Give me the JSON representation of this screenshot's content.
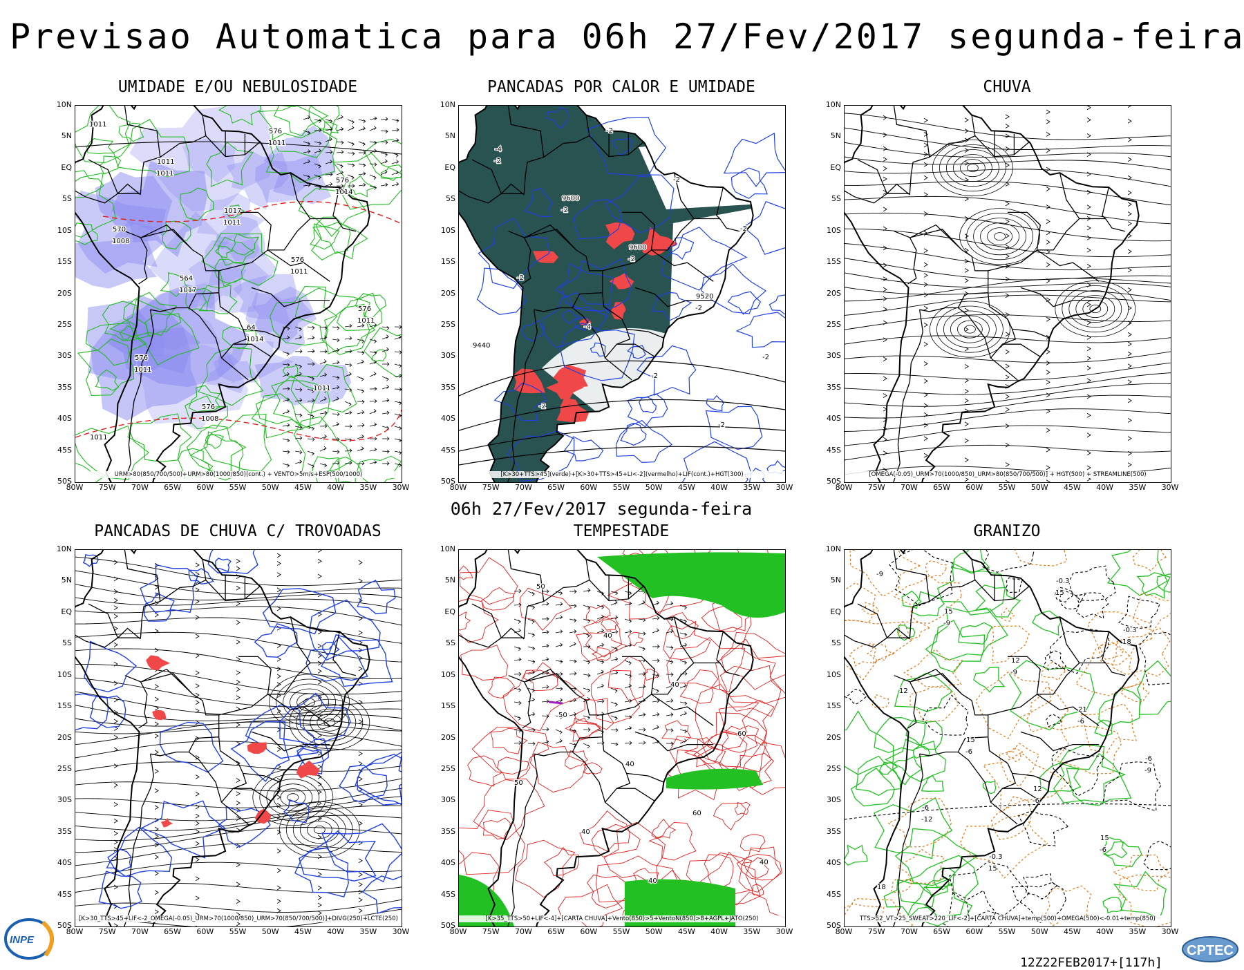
{
  "header": {
    "title": "Previsao Automatica  para 06h 27/Fev/2017 segunda-feira",
    "middle_title": "06h 27/Fev/2017 segunda-feira",
    "run": "12Z22FEB2017+[117h]"
  },
  "axes": {
    "lat": [
      "10N",
      "5N",
      "EQ",
      "5S",
      "10S",
      "15S",
      "20S",
      "25S",
      "30S",
      "35S",
      "40S",
      "45S",
      "50S"
    ],
    "lon": [
      "80W",
      "75W",
      "70W",
      "65W",
      "60W",
      "55W",
      "50W",
      "45W",
      "40W",
      "35W",
      "30W"
    ]
  },
  "panels": [
    {
      "id": "umidade",
      "title": "UMIDADE E/OU NEBULOSIDADE",
      "caption": "URM>80(850/700/500)+URM>80(1000/850)(cont.) + VENTO>5m/s+ESP(500/1000)",
      "labels": [
        "1011",
        "1011",
        "1011",
        "1011",
        "1011",
        "1011",
        "1008",
        "1011",
        "1014",
        "1008",
        "1017",
        "1014",
        "1011",
        "1011",
        "1011",
        "1017",
        "576",
        "576",
        "576",
        "576",
        "576",
        "576",
        "570",
        "564",
        "64"
      ],
      "colors": {
        "humidity": "#8c8cf0",
        "contour": "#22bb22",
        "thickness": "#e02020",
        "pressure": "#000000"
      }
    },
    {
      "id": "pancadas-calor",
      "title": "PANCADAS POR CALOR E UMIDADE",
      "caption": "[K>30+TTS>45](verde)+[K>30+TTS>45+LI<-2](vermelho)+LIF(cont.)+HGT(300)",
      "labels": [
        "-2",
        "-2",
        "-2",
        "-2",
        "-2",
        "-2",
        "-2",
        "-2",
        "-2",
        "-2",
        "-4",
        "-2",
        "-2",
        "-4",
        "9600",
        "9600",
        "9520",
        "9440"
      ],
      "colors": {
        "green": "#1e4a48",
        "red": "#f04848",
        "lif": "#2040e0",
        "hgt": "#000000"
      }
    },
    {
      "id": "chuva",
      "title": "CHUVA",
      "caption": "[OMEGA(-0.05)_URM>70(1000/850)_URM>80(850/700/500)] + HGT(500) + STREAMLINE(500)",
      "labels": [],
      "colors": {
        "streamline": "#000000"
      }
    },
    {
      "id": "trovoadas",
      "title": "PANCADAS DE CHUVA C/ TROVOADAS",
      "caption": "[K>30_TTS>45+LIF<-2_OMEGA(-0.05)_URM>70(1000/850)_URM>70(850/700/500)]+DIVG(250)+LCTE(250)",
      "labels": [],
      "colors": {
        "streamline": "#000000",
        "divg": "#2040e0",
        "storm": "#f04848"
      }
    },
    {
      "id": "tempestade",
      "title": "TEMPESTADE",
      "caption": "[K>35_TTS>50+LIF<-4]+[CARTA CHUVA]+Vento(850)>5+VentoN(850)>8+AGPL+JATO(250)",
      "labels": [
        "50",
        "40",
        "60",
        "40",
        "50",
        "40",
        "40",
        "60",
        "50",
        "40",
        "40"
      ],
      "colors": {
        "jet": "#e02020",
        "green": "#22c022",
        "purple": "#a020c0"
      }
    },
    {
      "id": "granizo",
      "title": "GRANIZO",
      "caption": "TTS>52_VT>25_SWEAT>220_LIF<-2]+[CARTA CHUVA]+temp(500)+OMEGA(500)<-0.01+temp(850)",
      "labels": [
        "-6",
        "-6",
        "-6",
        "-9",
        "-9",
        "-9",
        "-6",
        "-9",
        "-12",
        "15",
        "15",
        "18",
        "12",
        "15",
        "12",
        "15",
        "18",
        "15",
        "12",
        "21",
        "-6",
        "-6",
        "-0.3",
        "-0.3",
        "-0.3"
      ],
      "colors": {
        "temp500": "#000000",
        "temp850": "#22c022",
        "omega": "#e07818"
      }
    }
  ],
  "logos": {
    "left": "INPE",
    "right": "CPTEC"
  }
}
